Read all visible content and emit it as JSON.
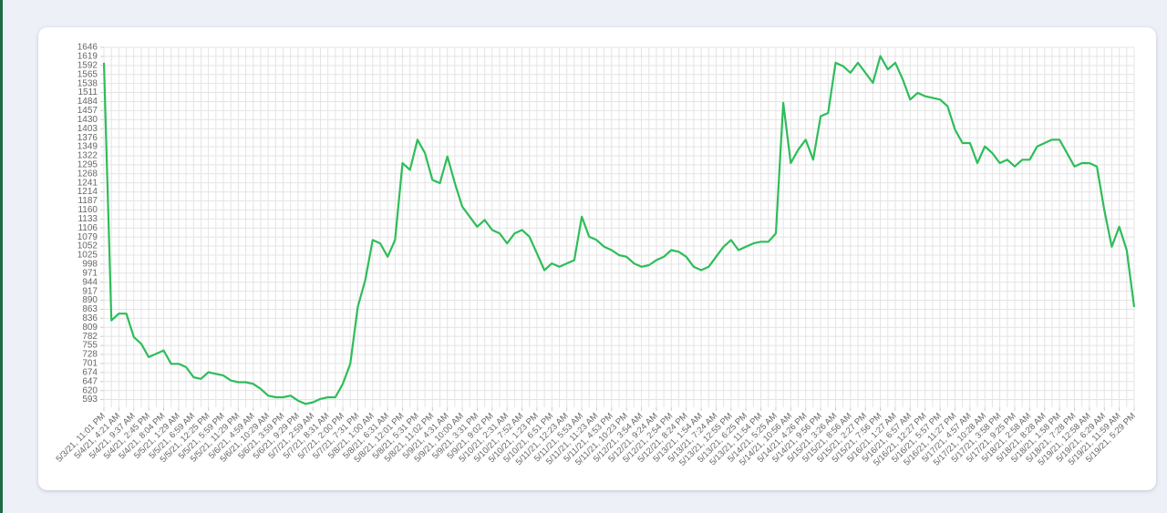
{
  "chart_data": {
    "type": "line",
    "categories": [
      "5/3/21, 11:01 PM",
      null,
      "5/4/21, 4:21 AM",
      null,
      "5/4/21, 9:37 AM",
      null,
      "5/4/21, 2:45 PM",
      null,
      "5/4/21, 8:04 PM",
      null,
      "5/5/21, 1:29 AM",
      null,
      "5/5/21, 6:59 AM",
      null,
      "5/5/21, 12:25 PM",
      null,
      "5/5/21, 5:59 PM",
      null,
      "5/5/21, 11:29 PM",
      null,
      "5/6/21, 4:59 AM",
      null,
      "5/6/21, 10:29 AM",
      null,
      "5/6/21, 3:59 PM",
      null,
      "5/6/21, 9:29 PM",
      null,
      "5/7/21, 2:59 AM",
      null,
      "5/7/21, 8:31 AM",
      null,
      "5/7/21, 2:00 PM",
      null,
      "5/7/21, 7:31 PM",
      null,
      "5/8/21, 1:00 AM",
      null,
      "5/8/21, 6:31 AM",
      null,
      "5/8/21, 12:01 PM",
      null,
      "5/8/21, 5:31 PM",
      null,
      "5/8/21, 11:02 PM",
      null,
      "5/9/21, 4:31 AM",
      null,
      "5/9/21, 10:00 AM",
      null,
      "5/9/21, 3:31 PM",
      null,
      "5/9/21, 9:02 PM",
      null,
      "5/10/21, 2:31 AM",
      null,
      "5/10/21, 7:52 AM",
      null,
      "5/10/21, 1:23 PM",
      null,
      "5/10/21, 6:51 PM",
      null,
      "5/11/21, 12:23 AM",
      null,
      "5/11/21, 5:53 AM",
      null,
      "5/11/21, 11:23 AM",
      null,
      "5/11/21, 4:53 PM",
      null,
      "5/11/21, 10:23 PM",
      null,
      "5/12/21, 3:54 AM",
      null,
      "5/12/21, 9:24 AM",
      null,
      "5/12/21, 2:54 PM",
      null,
      "5/12/21, 8:24 PM",
      null,
      "5/13/21, 1:54 AM",
      null,
      "5/13/21, 7:24 AM",
      null,
      "5/13/21, 12:55 PM",
      null,
      "5/13/21, 6:25 PM",
      null,
      "5/13/21, 11:54 PM",
      null,
      "5/14/21, 5:25 AM",
      null,
      "5/14/21, 10:56 AM",
      null,
      "5/14/21, 4:26 PM",
      null,
      "5/14/21, 9:56 PM",
      null,
      "5/15/21, 3:26 AM",
      null,
      "5/15/21, 8:56 AM",
      null,
      "5/15/21, 2:27 PM",
      null,
      "5/15/21, 7:56 PM",
      null,
      "5/16/21, 1:27 AM",
      null,
      "5/16/21, 6:57 AM",
      null,
      "5/16/21, 12:27 PM",
      null,
      "5/16/21, 5:57 PM",
      null,
      "5/16/21, 11:27 PM",
      null,
      "5/17/21, 4:57 AM",
      null,
      "5/17/21, 10:28 AM",
      null,
      "5/17/21, 3:58 PM",
      null,
      "5/17/21, 9:25 PM",
      null,
      "5/18/21, 2:58 AM",
      null,
      "5/18/21, 8:28 AM",
      null,
      "5/18/21, 1:58 PM",
      null,
      "5/18/21, 7:28 PM",
      null,
      "5/19/21, 12:58 AM",
      null,
      "5/19/21, 6:29 AM",
      null,
      "5/19/21, 11:59 AM",
      null,
      "5/19/21, 5:29 PM"
    ],
    "values": [
      1600,
      830,
      850,
      850,
      780,
      760,
      720,
      730,
      740,
      700,
      700,
      690,
      660,
      655,
      675,
      670,
      665,
      650,
      645,
      645,
      640,
      625,
      605,
      600,
      600,
      605,
      590,
      580,
      585,
      595,
      600,
      600,
      640,
      700,
      870,
      950,
      1070,
      1060,
      1020,
      1070,
      1300,
      1280,
      1370,
      1330,
      1250,
      1240,
      1320,
      1240,
      1170,
      1140,
      1110,
      1130,
      1100,
      1090,
      1060,
      1090,
      1100,
      1080,
      1030,
      980,
      1000,
      990,
      1000,
      1010,
      1140,
      1080,
      1070,
      1050,
      1040,
      1025,
      1020,
      1000,
      990,
      995,
      1010,
      1020,
      1040,
      1035,
      1020,
      990,
      980,
      990,
      1020,
      1050,
      1070,
      1040,
      1050,
      1060,
      1065,
      1065,
      1090,
      1480,
      1300,
      1340,
      1370,
      1310,
      1440,
      1450,
      1600,
      1590,
      1570,
      1600,
      1570,
      1540,
      1620,
      1580,
      1600,
      1550,
      1490,
      1510,
      1500,
      1495,
      1490,
      1470,
      1400,
      1360,
      1360,
      1300,
      1350,
      1330,
      1300,
      1310,
      1290,
      1310,
      1310,
      1350,
      1360,
      1370,
      1370,
      1330,
      1290,
      1300,
      1300,
      1290,
      1160,
      1050,
      1110,
      1040,
      870
    ],
    "color": "#2ebd59",
    "ylim": [
      570,
      1646
    ],
    "yticks": [
      593,
      620,
      647,
      674,
      701,
      728,
      755,
      782,
      809,
      836,
      863,
      890,
      917,
      944,
      971,
      998,
      1025,
      1052,
      1079,
      1106,
      1133,
      1160,
      1187,
      1214,
      1241,
      1268,
      1295,
      1322,
      1349,
      1376,
      1403,
      1430,
      1457,
      1484,
      1511,
      1538,
      1565,
      1592,
      1619,
      1646
    ],
    "grid": true
  }
}
